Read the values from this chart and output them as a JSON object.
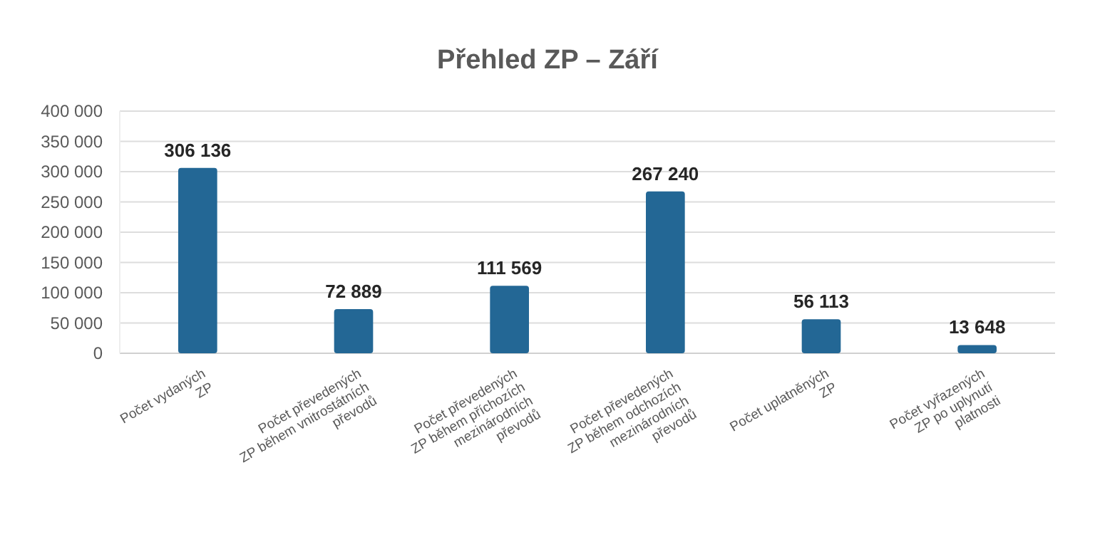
{
  "chart_data": {
    "type": "bar",
    "title": "Přehled ZP – Září",
    "categories": [
      "Počet vydaných\nZP",
      "Počet převedených\nZP během vnitrostátních\npřevodů",
      "Počet převedených\nZP během příchozích\nmezinárodních\npřevodů",
      "Počet převedených\nZP během odchozích\nmezinárodních\npřevodů",
      "Počet uplatněných\nZP",
      "Počet vyřazených\nZP po uplynutí\nplatnosti"
    ],
    "values": [
      306136,
      72889,
      111569,
      267240,
      56113,
      13648
    ],
    "value_labels": [
      "306 136",
      "72 889",
      "111 569",
      "267 240",
      "56 113",
      "13 648"
    ],
    "color": "#236795",
    "ylim": [
      0,
      400000
    ],
    "yticks": [
      {
        "value": 0,
        "label": "0"
      },
      {
        "value": 50000,
        "label": "50 000"
      },
      {
        "value": 100000,
        "label": "100 000"
      },
      {
        "value": 150000,
        "label": "150 000"
      },
      {
        "value": 200000,
        "label": "200 000"
      },
      {
        "value": 250000,
        "label": "250 000"
      },
      {
        "value": 300000,
        "label": "300 000"
      },
      {
        "value": 350000,
        "label": "350 000"
      },
      {
        "value": 400000,
        "label": "400 000"
      }
    ],
    "grid": true
  }
}
